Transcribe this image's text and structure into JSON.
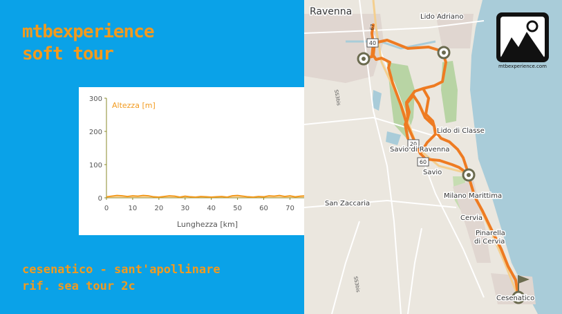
{
  "header": {
    "title_line1": "mtbexperience",
    "title_line2": "soft tour"
  },
  "footer": {
    "route_line1": "cesenatico - sant'apollinare",
    "route_line2": "rif. sea tour 2c"
  },
  "chart_data": {
    "type": "area",
    "title": "",
    "ylabel": "Altezza [m]",
    "xlabel": "Lunghezza [km]",
    "ylim": [
      0,
      300
    ],
    "xlim": [
      0,
      77
    ],
    "y_ticks": [
      "0",
      "100",
      "200",
      "300"
    ],
    "x_ticks": [
      "0",
      "10",
      "20",
      "30",
      "40",
      "50",
      "60",
      "70"
    ],
    "x": [
      0,
      2,
      4,
      6,
      8,
      10,
      12,
      14,
      16,
      18,
      20,
      22,
      24,
      26,
      28,
      30,
      32,
      34,
      36,
      38,
      40,
      42,
      44,
      46,
      48,
      50,
      52,
      54,
      56,
      58,
      60,
      62,
      64,
      66,
      68,
      70,
      72,
      74,
      76
    ],
    "values": [
      3,
      5,
      7,
      6,
      4,
      6,
      5,
      7,
      6,
      3,
      2,
      4,
      6,
      5,
      2,
      5,
      3,
      2,
      4,
      3,
      2,
      3,
      4,
      2,
      6,
      7,
      5,
      3,
      2,
      4,
      3,
      6,
      5,
      7,
      4,
      6,
      3,
      5,
      6
    ],
    "color": "#f29a1e",
    "grid": false
  },
  "map": {
    "labels": {
      "ravenna": "Ravenna",
      "lido_adriano": "Lido Adriano",
      "lido_di_classe": "Lido di Classe",
      "savio_di_ravenna": "Savio di Ravenna",
      "savio": "Savio",
      "milano_marittima": "Milano Marittima",
      "cervia": "Cervia",
      "pinarella_line1": "Pinarella",
      "pinarella_line2": "di Cervia",
      "san_zaccaria": "San Zaccaria",
      "cesenatico": "Cesenatico"
    },
    "road_shields": [
      "67",
      "40",
      "20",
      "60"
    ],
    "road_names": [
      "SS3bis",
      "SS3bis"
    ],
    "route_color": "#ee7b22",
    "sea_color": "#a9ccd9"
  },
  "logo": {
    "caption": "mtbexperience.com",
    "icon": "mountain-sun-icon"
  }
}
